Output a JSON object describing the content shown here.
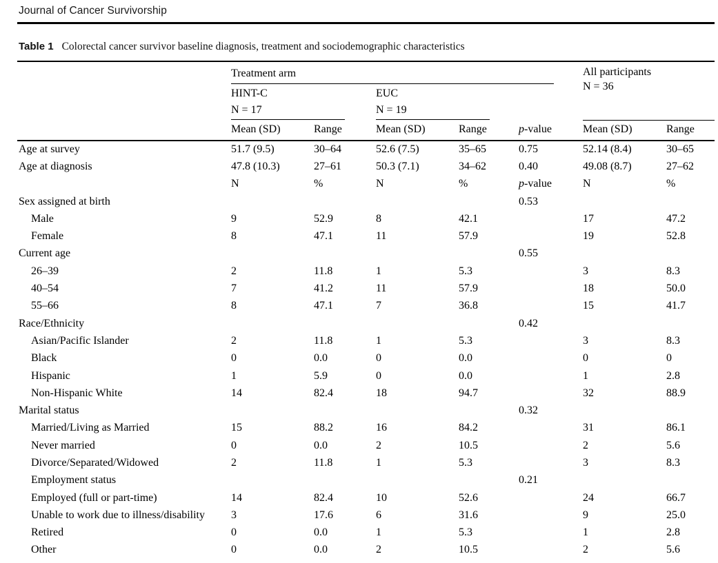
{
  "page": {
    "journal_header": "Journal of Cancer Survivorship"
  },
  "caption": {
    "label": "Table 1",
    "text": "Colorectal cancer survivor baseline diagnosis, treatment and sociodemographic characteristics"
  },
  "table": {
    "groups": {
      "treatment_arm": "Treatment arm",
      "hintc_name": "HINT-C",
      "hintc_n": "N = 17",
      "euc_name": "EUC",
      "euc_n": "N = 19",
      "all_name": "All participants",
      "all_n": "N = 36"
    },
    "col_headers": [
      "Mean (SD)",
      "Range",
      "Mean (SD)",
      "Range",
      "p-value",
      "Mean (SD)",
      "Range"
    ],
    "rows": [
      {
        "label": "Age at survey",
        "indent": false,
        "cells": [
          "51.7 (9.5)",
          "30–64",
          "52.6 (7.5)",
          "35–65",
          "0.75",
          "52.14 (8.4)",
          "30–65"
        ]
      },
      {
        "label": "Age at diagnosis",
        "indent": false,
        "cells": [
          "47.8 (10.3)",
          "27–61",
          "50.3 (7.1)",
          "34–62",
          "0.40",
          "49.08 (8.7)",
          "27–62"
        ]
      },
      {
        "label": "",
        "indent": false,
        "cells": [
          "N",
          "%",
          "N",
          "%",
          "p-value",
          "N",
          "%"
        ]
      },
      {
        "label": "Sex assigned at birth",
        "indent": false,
        "cells": [
          "",
          "",
          "",
          "",
          "0.53",
          "",
          ""
        ]
      },
      {
        "label": "Male",
        "indent": true,
        "cells": [
          "9",
          "52.9",
          "8",
          "42.1",
          "",
          "17",
          "47.2"
        ]
      },
      {
        "label": "Female",
        "indent": true,
        "cells": [
          "8",
          "47.1",
          "11",
          "57.9",
          "",
          "19",
          "52.8"
        ]
      },
      {
        "label": "Current age",
        "indent": false,
        "cells": [
          "",
          "",
          "",
          "",
          "0.55",
          "",
          ""
        ]
      },
      {
        "label": "26–39",
        "indent": true,
        "cells": [
          "2",
          "11.8",
          "1",
          "5.3",
          "",
          "3",
          "8.3"
        ]
      },
      {
        "label": "40–54",
        "indent": true,
        "cells": [
          "7",
          "41.2",
          "11",
          "57.9",
          "",
          "18",
          "50.0"
        ]
      },
      {
        "label": "55–66",
        "indent": true,
        "cells": [
          "8",
          "47.1",
          "7",
          "36.8",
          "",
          "15",
          "41.7"
        ]
      },
      {
        "label": "Race/Ethnicity",
        "indent": false,
        "cells": [
          "",
          "",
          "",
          "",
          "0.42",
          "",
          ""
        ]
      },
      {
        "label": "Asian/Pacific Islander",
        "indent": true,
        "cells": [
          "2",
          "11.8",
          "1",
          "5.3",
          "",
          "3",
          "8.3"
        ]
      },
      {
        "label": "Black",
        "indent": true,
        "cells": [
          "0",
          "0.0",
          "0",
          "0.0",
          "",
          "0",
          "0"
        ]
      },
      {
        "label": "Hispanic",
        "indent": true,
        "cells": [
          "1",
          "5.9",
          "0",
          "0.0",
          "",
          "1",
          "2.8"
        ]
      },
      {
        "label": "Non-Hispanic White",
        "indent": true,
        "cells": [
          "14",
          "82.4",
          "18",
          "94.7",
          "",
          "32",
          "88.9"
        ]
      },
      {
        "label": "Marital status",
        "indent": false,
        "cells": [
          "",
          "",
          "",
          "",
          "0.32",
          "",
          ""
        ]
      },
      {
        "label": "Married/Living as Married",
        "indent": true,
        "cells": [
          "15",
          "88.2",
          "16",
          "84.2",
          "",
          "31",
          "86.1"
        ]
      },
      {
        "label": "Never married",
        "indent": true,
        "cells": [
          "0",
          "0.0",
          "2",
          "10.5",
          "",
          "2",
          "5.6"
        ]
      },
      {
        "label": "Divorce/Separated/Widowed",
        "indent": true,
        "cells": [
          "2",
          "11.8",
          "1",
          "5.3",
          "",
          "3",
          "8.3"
        ]
      },
      {
        "label": "Employment status",
        "indent": true,
        "cells": [
          "",
          "",
          "",
          "",
          "0.21",
          "",
          ""
        ]
      },
      {
        "label": "Employed (full or part-time)",
        "indent": true,
        "cells": [
          "14",
          "82.4",
          "10",
          "52.6",
          "",
          "24",
          "66.7"
        ]
      },
      {
        "label": "Unable to work due to illness/disability",
        "indent": true,
        "cells": [
          "3",
          "17.6",
          "6",
          "31.6",
          "",
          "9",
          "25.0"
        ]
      },
      {
        "label": "Retired",
        "indent": true,
        "cells": [
          "0",
          "0.0",
          "1",
          "5.3",
          "",
          "1",
          "2.8"
        ]
      },
      {
        "label": "Other",
        "indent": true,
        "cells": [
          "0",
          "0.0",
          "2",
          "10.5",
          "",
          "2",
          "5.6"
        ]
      }
    ]
  }
}
